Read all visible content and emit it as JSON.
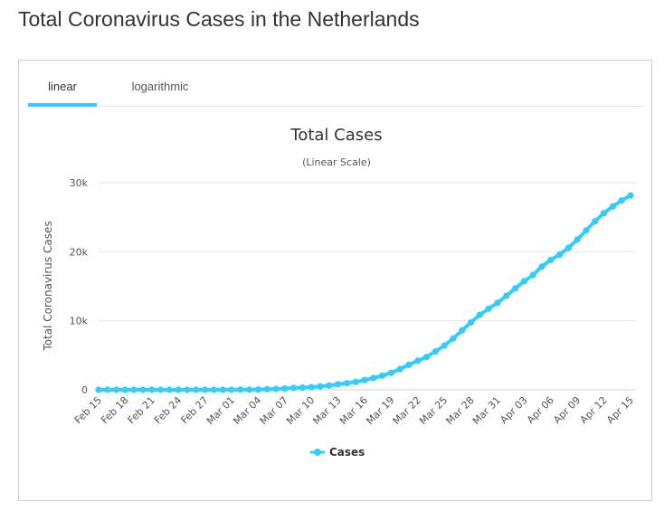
{
  "page": {
    "title": "Total Coronavirus Cases in the Netherlands"
  },
  "tabs": [
    {
      "label": "linear",
      "active": true
    },
    {
      "label": "logarithmic",
      "active": false
    }
  ],
  "colors": {
    "series": "#33ccff",
    "tab_active": "#33ccff",
    "grid": "#e6e6e6"
  },
  "chart_data": {
    "type": "line",
    "title": "Total Cases",
    "subtitle": "(Linear Scale)",
    "ylabel": "Total Coronavirus Cases",
    "xlabel": "",
    "ylim": [
      0,
      30000
    ],
    "yticks": [
      0,
      10000,
      20000,
      30000
    ],
    "ytick_labels": [
      "0",
      "10k",
      "20k",
      "30k"
    ],
    "grid": true,
    "legend": "bottom-center",
    "x": [
      "Feb 15",
      "Feb 16",
      "Feb 17",
      "Feb 18",
      "Feb 19",
      "Feb 20",
      "Feb 21",
      "Feb 22",
      "Feb 23",
      "Feb 24",
      "Feb 25",
      "Feb 26",
      "Feb 27",
      "Feb 28",
      "Feb 29",
      "Mar 01",
      "Mar 02",
      "Mar 03",
      "Mar 04",
      "Mar 05",
      "Mar 06",
      "Mar 07",
      "Mar 08",
      "Mar 09",
      "Mar 10",
      "Mar 11",
      "Mar 12",
      "Mar 13",
      "Mar 14",
      "Mar 15",
      "Mar 16",
      "Mar 17",
      "Mar 18",
      "Mar 19",
      "Mar 20",
      "Mar 21",
      "Mar 22",
      "Mar 23",
      "Mar 24",
      "Mar 25",
      "Mar 26",
      "Mar 27",
      "Mar 28",
      "Mar 29",
      "Mar 30",
      "Mar 31",
      "Apr 01",
      "Apr 02",
      "Apr 03",
      "Apr 04",
      "Apr 05",
      "Apr 06",
      "Apr 07",
      "Apr 08",
      "Apr 09",
      "Apr 10",
      "Apr 11",
      "Apr 12",
      "Apr 13",
      "Apr 14",
      "Apr 15"
    ],
    "x_tick_labels": [
      "Feb 15",
      "Feb 18",
      "Feb 21",
      "Feb 24",
      "Feb 27",
      "Mar 01",
      "Mar 04",
      "Mar 07",
      "Mar 10",
      "Mar 13",
      "Mar 16",
      "Mar 19",
      "Mar 22",
      "Mar 25",
      "Mar 28",
      "Mar 31",
      "Apr 03",
      "Apr 06",
      "Apr 09",
      "Apr 12",
      "Apr 15"
    ],
    "series": [
      {
        "name": "Cases",
        "values": [
          0,
          0,
          0,
          0,
          0,
          0,
          0,
          0,
          0,
          0,
          0,
          0,
          1,
          2,
          7,
          10,
          18,
          24,
          38,
          82,
          128,
          188,
          265,
          321,
          382,
          503,
          614,
          804,
          959,
          1135,
          1413,
          1705,
          2051,
          2460,
          2994,
          3631,
          4204,
          4749,
          5560,
          6412,
          7431,
          8603,
          9762,
          10866,
          11750,
          12595,
          13614,
          14697,
          15723,
          16627,
          17851,
          18803,
          19580,
          20549,
          21762,
          23097,
          24413,
          25587,
          26551,
          27419,
          28153
        ]
      }
    ]
  }
}
